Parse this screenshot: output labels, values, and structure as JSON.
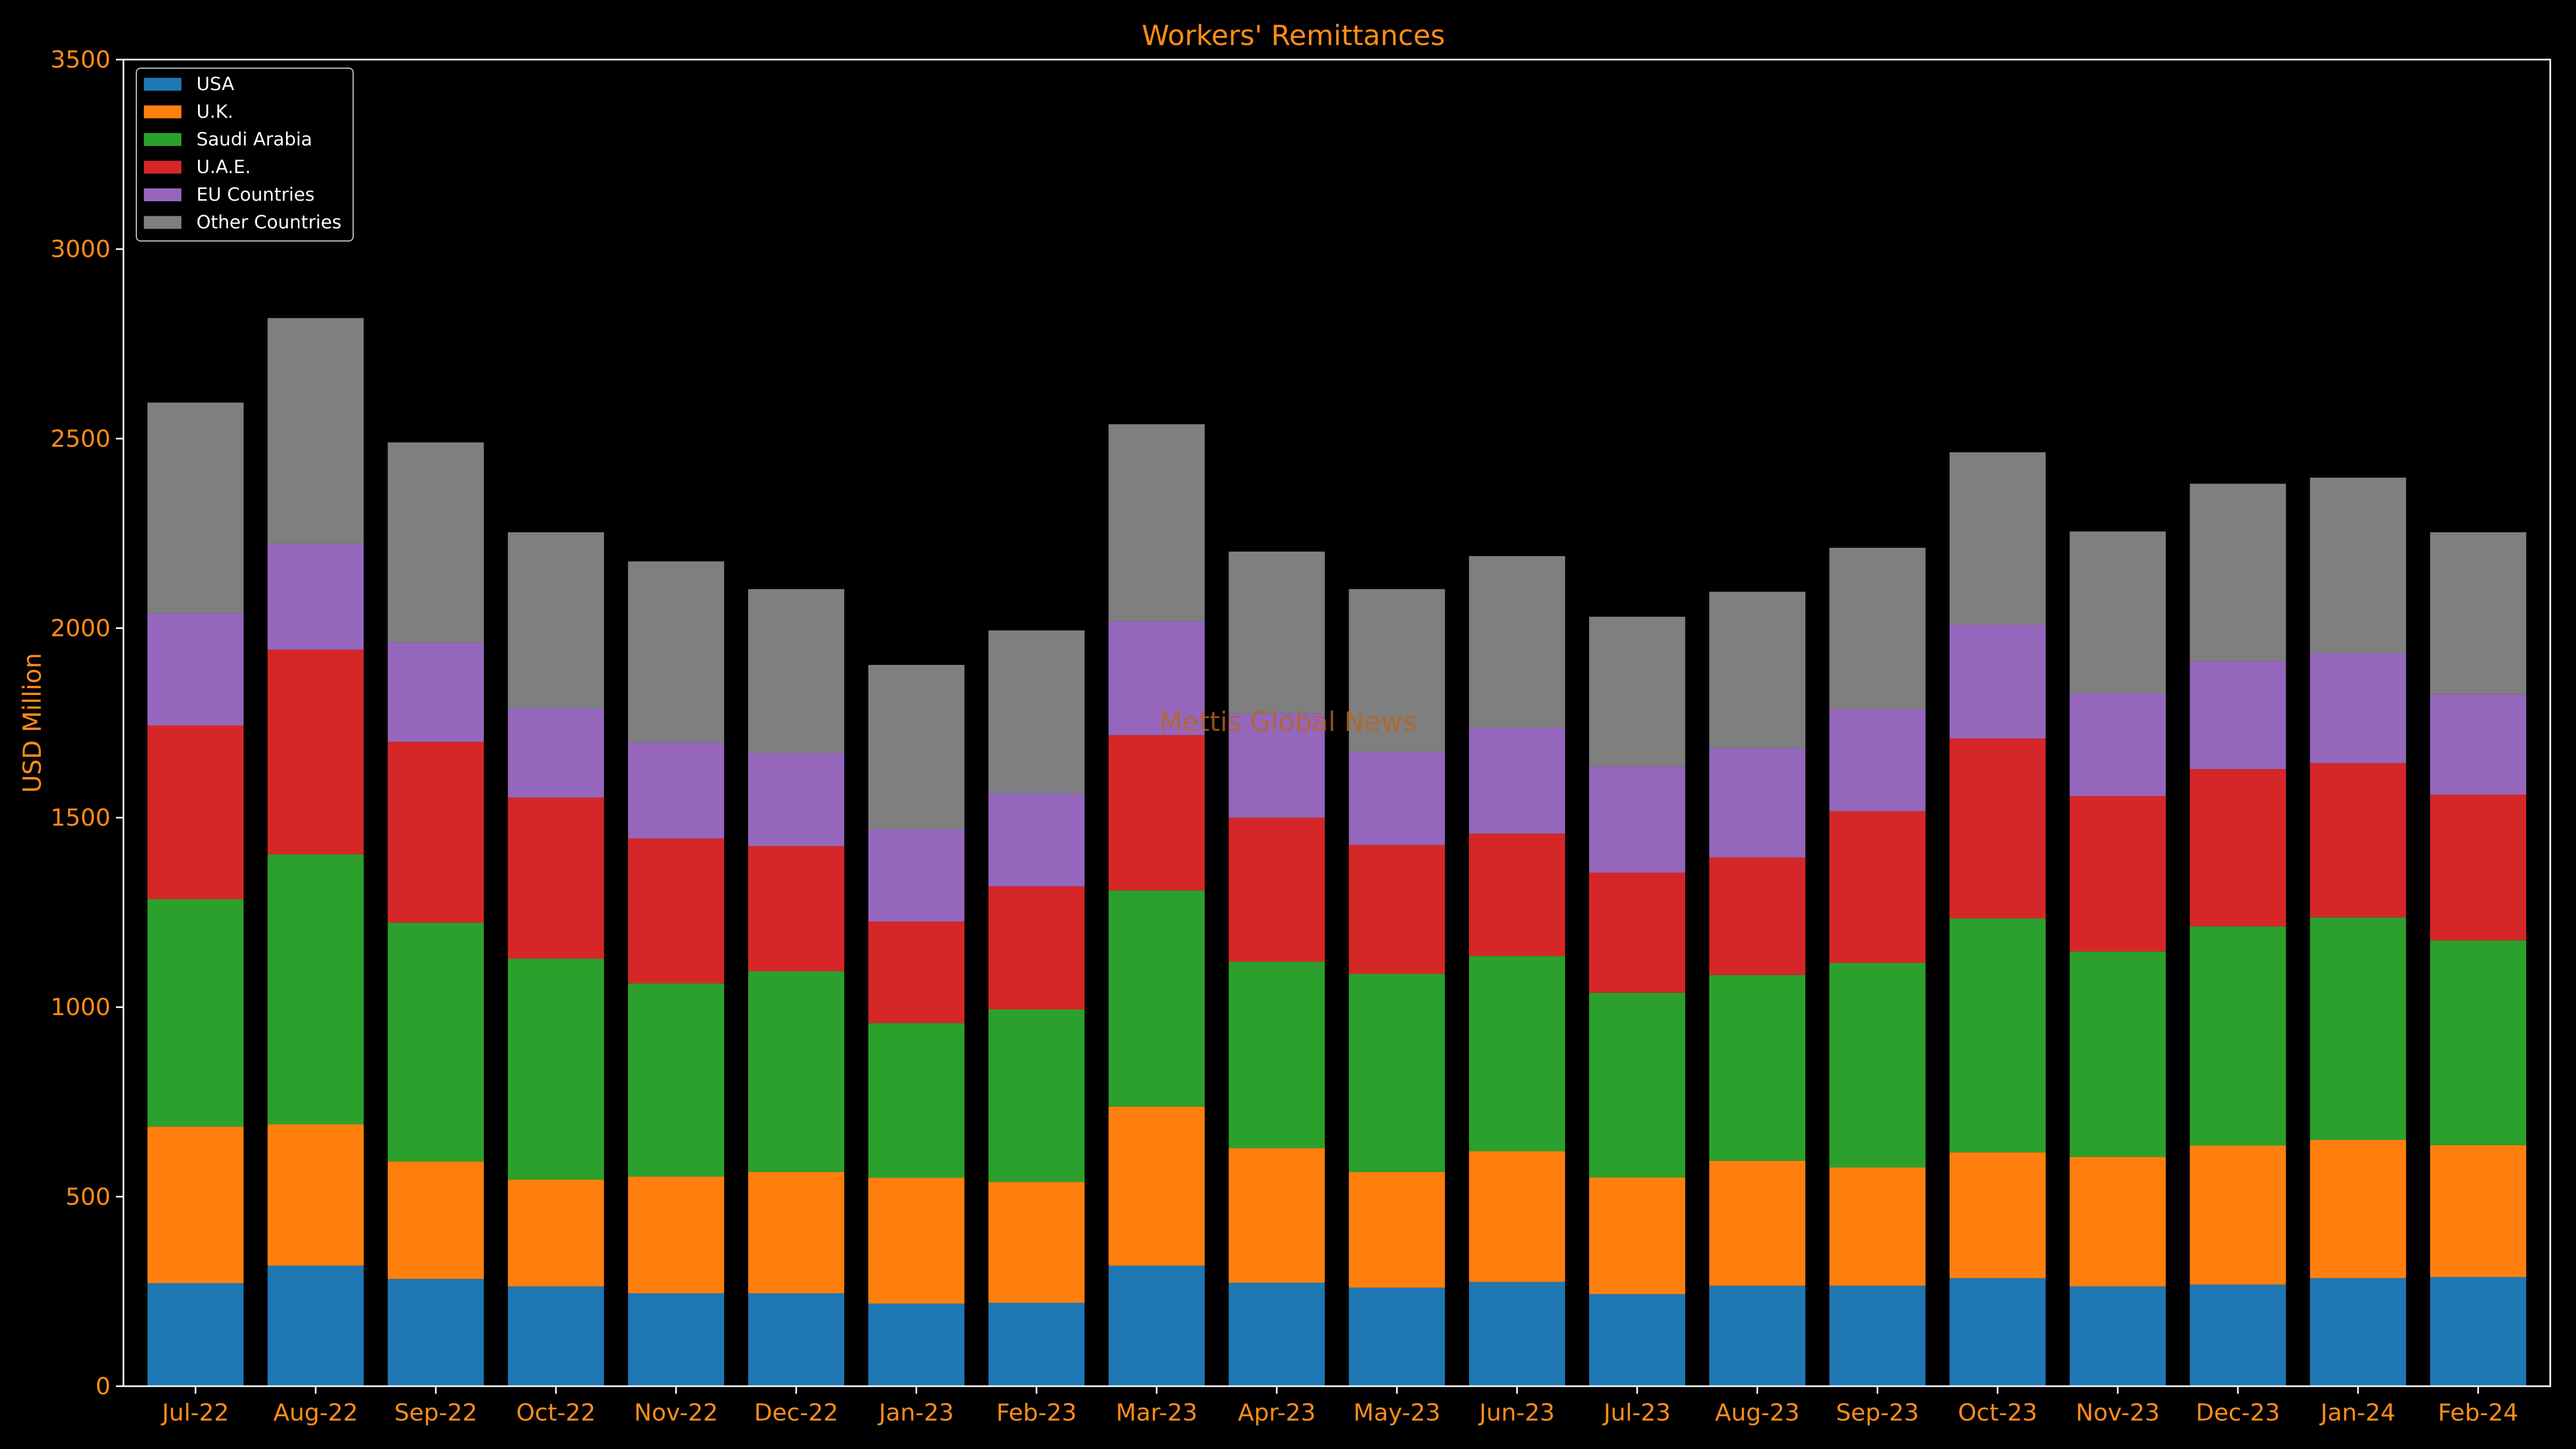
{
  "chart_data": {
    "type": "bar",
    "stacked": true,
    "title": "Workers' Remittances",
    "xlabel": "",
    "ylabel": "USD Million",
    "ylim": [
      0,
      3500
    ],
    "yticks": [
      0,
      500,
      1000,
      1500,
      2000,
      2500,
      3000,
      3500
    ],
    "grid": false,
    "legend_position": "top-left",
    "watermark": "Mettis Global News",
    "categories": [
      "Jul-22",
      "Aug-22",
      "Sep-22",
      "Oct-22",
      "Nov-22",
      "Dec-22",
      "Jan-23",
      "Feb-23",
      "Mar-23",
      "Apr-23",
      "May-23",
      "Jun-23",
      "Jul-23",
      "Aug-23",
      "Sep-23",
      "Oct-23",
      "Nov-23",
      "Dec-23",
      "Jan-24",
      "Feb-24"
    ],
    "series": [
      {
        "name": "USA",
        "color": "#1f77b4",
        "values": [
          272,
          318,
          283,
          263,
          245,
          245,
          218,
          220,
          318,
          273,
          260,
          275,
          243,
          265,
          265,
          285,
          263,
          268,
          285,
          288
        ]
      },
      {
        "name": "U.K.",
        "color": "#ff7f0e",
        "values": [
          413,
          373,
          310,
          282,
          308,
          320,
          332,
          319,
          420,
          355,
          305,
          345,
          308,
          330,
          312,
          332,
          342,
          367,
          365,
          348
        ]
      },
      {
        "name": "Saudi Arabia",
        "color": "#2ca02c",
        "values": [
          600,
          712,
          630,
          583,
          510,
          530,
          408,
          455,
          570,
          492,
          523,
          515,
          487,
          490,
          540,
          617,
          542,
          578,
          587,
          540
        ]
      },
      {
        "name": "U.A.E.",
        "color": "#d62728",
        "values": [
          458,
          540,
          477,
          425,
          382,
          330,
          268,
          325,
          410,
          380,
          340,
          323,
          317,
          310,
          400,
          475,
          410,
          415,
          407,
          385
        ]
      },
      {
        "name": "EU Countries",
        "color": "#9467bd",
        "values": [
          297,
          280,
          262,
          235,
          253,
          245,
          243,
          245,
          300,
          275,
          245,
          280,
          280,
          288,
          270,
          300,
          270,
          285,
          290,
          265
        ]
      },
      {
        "name": "Other Countries",
        "color": "#7f7f7f",
        "values": [
          555,
          595,
          528,
          465,
          478,
          433,
          434,
          430,
          520,
          427,
          430,
          452,
          395,
          413,
          425,
          455,
          428,
          468,
          463,
          427
        ]
      }
    ]
  }
}
